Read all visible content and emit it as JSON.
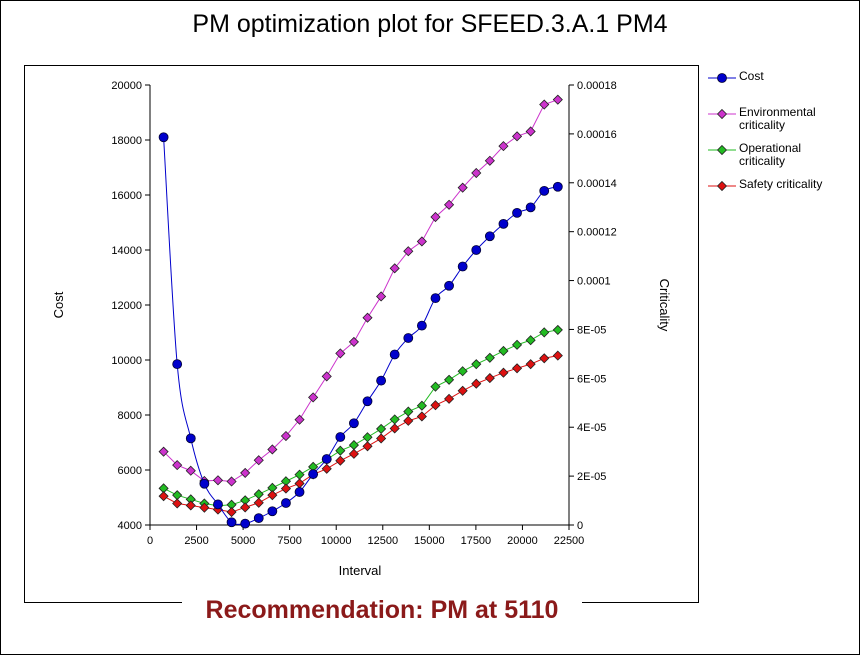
{
  "chart_data": {
    "type": "line",
    "title": "PM optimization plot for SFEED.3.A.1 PM4",
    "xlabel": "Interval",
    "ylabel_left": "Cost",
    "ylabel_right": "Criticality",
    "xlim": [
      0,
      22500
    ],
    "ylim_left": [
      4000,
      20000
    ],
    "ylim_right": [
      0,
      0.00018
    ],
    "x_ticks": [
      "0",
      "2500",
      "5000",
      "7500",
      "10000",
      "12500",
      "15000",
      "17500",
      "20000",
      "22500"
    ],
    "y_left_ticks": [
      "4000",
      "6000",
      "8000",
      "10000",
      "12000",
      "14000",
      "16000",
      "18000",
      "20000"
    ],
    "y_right_ticks": [
      "0",
      "2E-05",
      "4E-05",
      "6E-05",
      "8E-05",
      "0.0001",
      "0.00012",
      "0.00014",
      "0.00016",
      "0.00018"
    ],
    "x": [
      730,
      1460,
      2190,
      2920,
      3650,
      4380,
      5110,
      5840,
      6570,
      7300,
      8030,
      8760,
      9490,
      10220,
      10950,
      11680,
      12410,
      13140,
      13870,
      14600,
      15330,
      16060,
      16790,
      17520,
      18250,
      18980,
      19710,
      20440,
      21170,
      21900
    ],
    "series": [
      {
        "name": "Cost",
        "axis": "left",
        "color": "#0000cc",
        "marker": "circle",
        "values": [
          18100,
          9850,
          7150,
          5500,
          4750,
          4100,
          4050,
          4250,
          4500,
          4800,
          5200,
          5850,
          6400,
          7200,
          7700,
          8500,
          9250,
          10200,
          10800,
          11250,
          12250,
          12700,
          13400,
          14000,
          14500,
          14950,
          15350,
          15550,
          16150,
          16300
        ]
      },
      {
        "name": "Environmental criticality",
        "axis": "right",
        "color": "#cc33cc",
        "marker": "diamond",
        "values": [
          3e-05,
          2.45e-05,
          2.22e-05,
          1.8e-05,
          1.83e-05,
          1.78e-05,
          2.13e-05,
          2.65e-05,
          3.09e-05,
          3.64e-05,
          4.31e-05,
          5.22e-05,
          6.08e-05,
          7.02e-05,
          7.49e-05,
          8.48e-05,
          9.35e-05,
          0.000105,
          0.000112,
          0.000116,
          0.000126,
          0.000131,
          0.000138,
          0.000144,
          0.000149,
          0.000155,
          0.000159,
          0.000161,
          0.000172,
          0.000174
        ]
      },
      {
        "name": "Operational criticality",
        "axis": "right",
        "color": "#22bb22",
        "marker": "diamond",
        "values": [
          1.5e-05,
          1.22e-05,
          1.05e-05,
          8.8e-06,
          7.9e-06,
          8.3e-06,
          1.01e-05,
          1.26e-05,
          1.52e-05,
          1.79e-05,
          2.06e-05,
          2.38e-05,
          2.68e-05,
          3.04e-05,
          3.27e-05,
          3.59e-05,
          3.93e-05,
          4.32e-05,
          4.64e-05,
          4.88e-05,
          5.66e-05,
          5.94e-05,
          6.29e-05,
          6.58e-05,
          6.84e-05,
          7.12e-05,
          7.37e-05,
          7.56e-05,
          7.88e-05,
          7.98e-05
        ]
      },
      {
        "name": "Safety criticality",
        "axis": "right",
        "color": "#dd1111",
        "marker": "diamond",
        "values": [
          1.18e-05,
          8.8e-06,
          8e-06,
          7.1e-06,
          6.3e-06,
          5.3e-06,
          7.2e-06,
          9.1e-06,
          1.22e-05,
          1.49e-05,
          1.7e-05,
          2.07e-05,
          2.3e-05,
          2.63e-05,
          2.91e-05,
          3.22e-05,
          3.54e-05,
          3.95e-05,
          4.26e-05,
          4.44e-05,
          4.9e-05,
          5.16e-05,
          5.49e-05,
          5.78e-05,
          6.01e-05,
          6.23e-05,
          6.41e-05,
          6.58e-05,
          6.82e-05,
          6.93e-05
        ]
      }
    ],
    "legend_position": "right",
    "grid": false
  },
  "recommendation": "Recommendation: PM at 5110"
}
